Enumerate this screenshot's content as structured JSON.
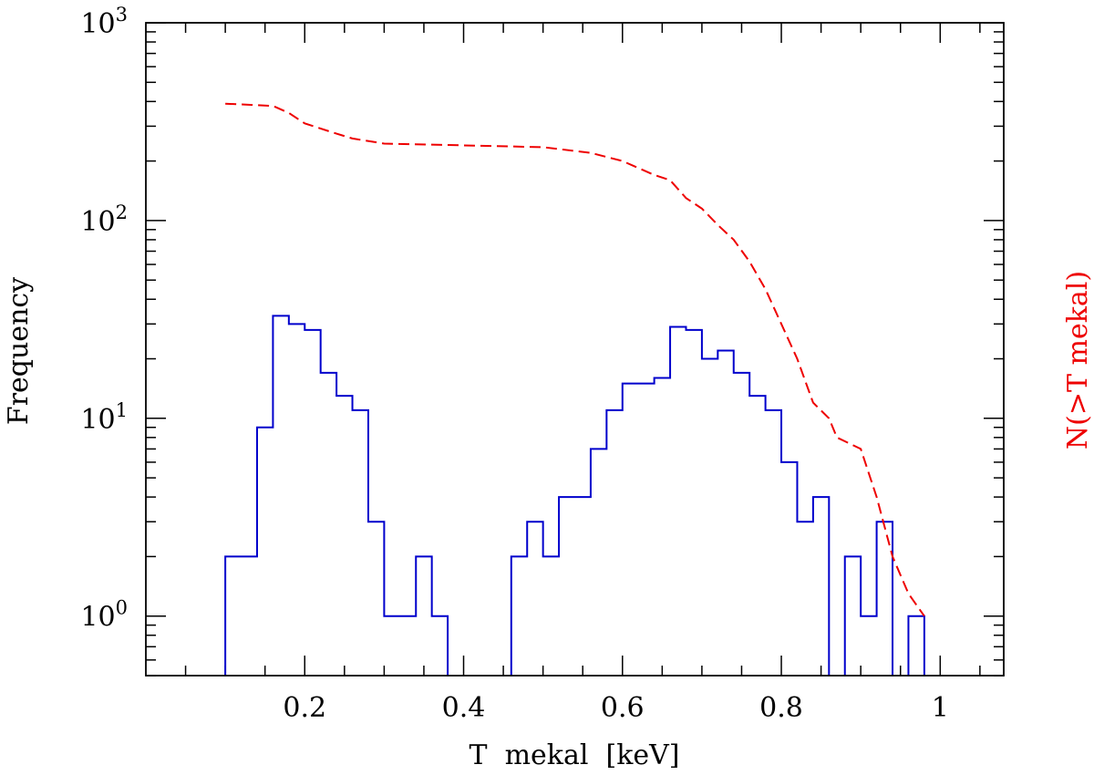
{
  "chart_data": {
    "type": "line",
    "xlabel": "T  mekal  [keV]",
    "ylabel": "Frequency",
    "ylabel_right": "N(>T mekal)",
    "xlim": [
      0,
      1.08
    ],
    "ylim": [
      0.5,
      1000
    ],
    "yscale": "log",
    "x_ticks": [
      "0.2",
      "0.4",
      "0.6",
      "0.8",
      "1"
    ],
    "y_ticks": [
      {
        "base": "10",
        "exp": "0",
        "value": 1
      },
      {
        "base": "10",
        "exp": "1",
        "value": 10
      },
      {
        "base": "10",
        "exp": "2",
        "value": 100
      },
      {
        "base": "10",
        "exp": "3",
        "value": 1000
      }
    ],
    "grid": false,
    "series": [
      {
        "name": "Frequency",
        "style": "steps",
        "color": "#0000cc",
        "bin_width": 0.02,
        "bins": [
          [
            0.1,
            2
          ],
          [
            0.12,
            2
          ],
          [
            0.14,
            9
          ],
          [
            0.16,
            33
          ],
          [
            0.18,
            30
          ],
          [
            0.2,
            28
          ],
          [
            0.22,
            17
          ],
          [
            0.24,
            13
          ],
          [
            0.26,
            11
          ],
          [
            0.28,
            3
          ],
          [
            0.3,
            1
          ],
          [
            0.32,
            1
          ],
          [
            0.34,
            2
          ],
          [
            0.36,
            1
          ],
          [
            0.38,
            0
          ],
          [
            0.4,
            0
          ],
          [
            0.42,
            0
          ],
          [
            0.44,
            0
          ],
          [
            0.46,
            2
          ],
          [
            0.48,
            3
          ],
          [
            0.5,
            2
          ],
          [
            0.52,
            4
          ],
          [
            0.54,
            4
          ],
          [
            0.56,
            7
          ],
          [
            0.58,
            11
          ],
          [
            0.6,
            15
          ],
          [
            0.62,
            15
          ],
          [
            0.64,
            16
          ],
          [
            0.66,
            29
          ],
          [
            0.68,
            28
          ],
          [
            0.7,
            20
          ],
          [
            0.72,
            22
          ],
          [
            0.74,
            17
          ],
          [
            0.76,
            13
          ],
          [
            0.78,
            11
          ],
          [
            0.8,
            6
          ],
          [
            0.82,
            3
          ],
          [
            0.84,
            4
          ],
          [
            0.86,
            0
          ],
          [
            0.88,
            2
          ],
          [
            0.9,
            1
          ],
          [
            0.92,
            3
          ],
          [
            0.94,
            0
          ],
          [
            0.96,
            1
          ]
        ]
      },
      {
        "name": "N(>T mekal)",
        "style": "dashed",
        "color": "#ee0000",
        "points": [
          [
            0.1,
            390
          ],
          [
            0.16,
            380
          ],
          [
            0.18,
            350
          ],
          [
            0.2,
            310
          ],
          [
            0.24,
            275
          ],
          [
            0.26,
            260
          ],
          [
            0.3,
            245
          ],
          [
            0.4,
            240
          ],
          [
            0.5,
            235
          ],
          [
            0.56,
            220
          ],
          [
            0.6,
            200
          ],
          [
            0.64,
            170
          ],
          [
            0.66,
            160
          ],
          [
            0.68,
            130
          ],
          [
            0.7,
            115
          ],
          [
            0.72,
            95
          ],
          [
            0.74,
            80
          ],
          [
            0.76,
            62
          ],
          [
            0.78,
            45
          ],
          [
            0.8,
            30
          ],
          [
            0.82,
            20
          ],
          [
            0.84,
            12
          ],
          [
            0.86,
            10
          ],
          [
            0.87,
            8
          ],
          [
            0.9,
            7
          ],
          [
            0.92,
            4
          ],
          [
            0.94,
            2
          ],
          [
            0.96,
            1.3
          ],
          [
            0.98,
            1
          ]
        ]
      }
    ]
  }
}
